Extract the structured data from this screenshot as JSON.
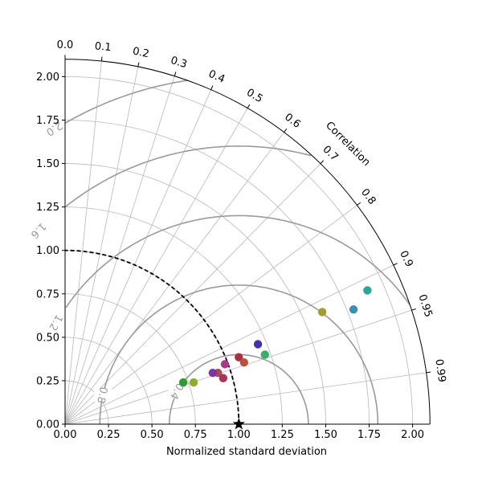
{
  "chart_data": {
    "type": "scatter",
    "subtype": "taylor-diagram",
    "xlabel": "Normalized standard deviation",
    "ylabel": "",
    "correlation_label": "Correlation",
    "std_max": 2.1,
    "std_ticks": [
      {
        "v": 0.0,
        "label": "0.00"
      },
      {
        "v": 0.25,
        "label": "0.25"
      },
      {
        "v": 0.5,
        "label": "0.50"
      },
      {
        "v": 0.75,
        "label": "0.75"
      },
      {
        "v": 1.0,
        "label": "1.00"
      },
      {
        "v": 1.25,
        "label": "1.25"
      },
      {
        "v": 1.5,
        "label": "1.50"
      },
      {
        "v": 1.75,
        "label": "1.75"
      },
      {
        "v": 2.0,
        "label": "2.00"
      }
    ],
    "correlation_ticks": [
      {
        "v": 0.0,
        "label": "0.0"
      },
      {
        "v": 0.1,
        "label": "0.1"
      },
      {
        "v": 0.2,
        "label": "0.2"
      },
      {
        "v": 0.3,
        "label": "0.3"
      },
      {
        "v": 0.4,
        "label": "0.4"
      },
      {
        "v": 0.5,
        "label": "0.5"
      },
      {
        "v": 0.6,
        "label": "0.6"
      },
      {
        "v": 0.7,
        "label": "0.7"
      },
      {
        "v": 0.8,
        "label": "0.8"
      },
      {
        "v": 0.9,
        "label": "0.9"
      },
      {
        "v": 0.95,
        "label": "0.95"
      },
      {
        "v": 0.99,
        "label": "0.99"
      }
    ],
    "rms_contours": [
      {
        "v": 0.4,
        "label": "0.4"
      },
      {
        "v": 0.8,
        "label": "0.8"
      },
      {
        "v": 1.2,
        "label": "1.2"
      },
      {
        "v": 1.6,
        "label": "1.6"
      },
      {
        "v": 2.0,
        "label": "2.0"
      }
    ],
    "reference": {
      "std": 1.0,
      "correlation": 1.0,
      "marker": "star"
    },
    "reference_arc": {
      "style": "dashed",
      "std": 1.0
    },
    "grid": true,
    "points": [
      {
        "x": 1.74,
        "y": 0.77,
        "color": "#2ca59a"
      },
      {
        "x": 1.66,
        "y": 0.66,
        "color": "#3b8fb0"
      },
      {
        "x": 1.48,
        "y": 0.645,
        "color": "#a39c2f"
      },
      {
        "x": 1.11,
        "y": 0.46,
        "color": "#4433a8"
      },
      {
        "x": 1.15,
        "y": 0.4,
        "color": "#3aad6a"
      },
      {
        "x": 1.0,
        "y": 0.385,
        "color": "#a83240"
      },
      {
        "x": 1.03,
        "y": 0.355,
        "color": "#b5543b"
      },
      {
        "x": 0.92,
        "y": 0.345,
        "color": "#a83a8a"
      },
      {
        "x": 0.88,
        "y": 0.295,
        "color": "#a84a58"
      },
      {
        "x": 0.85,
        "y": 0.295,
        "color": "#7a35a8"
      },
      {
        "x": 0.91,
        "y": 0.265,
        "color": "#a8345a"
      },
      {
        "x": 0.68,
        "y": 0.24,
        "color": "#2e9a30"
      },
      {
        "x": 0.74,
        "y": 0.24,
        "color": "#8fae2e"
      }
    ]
  }
}
